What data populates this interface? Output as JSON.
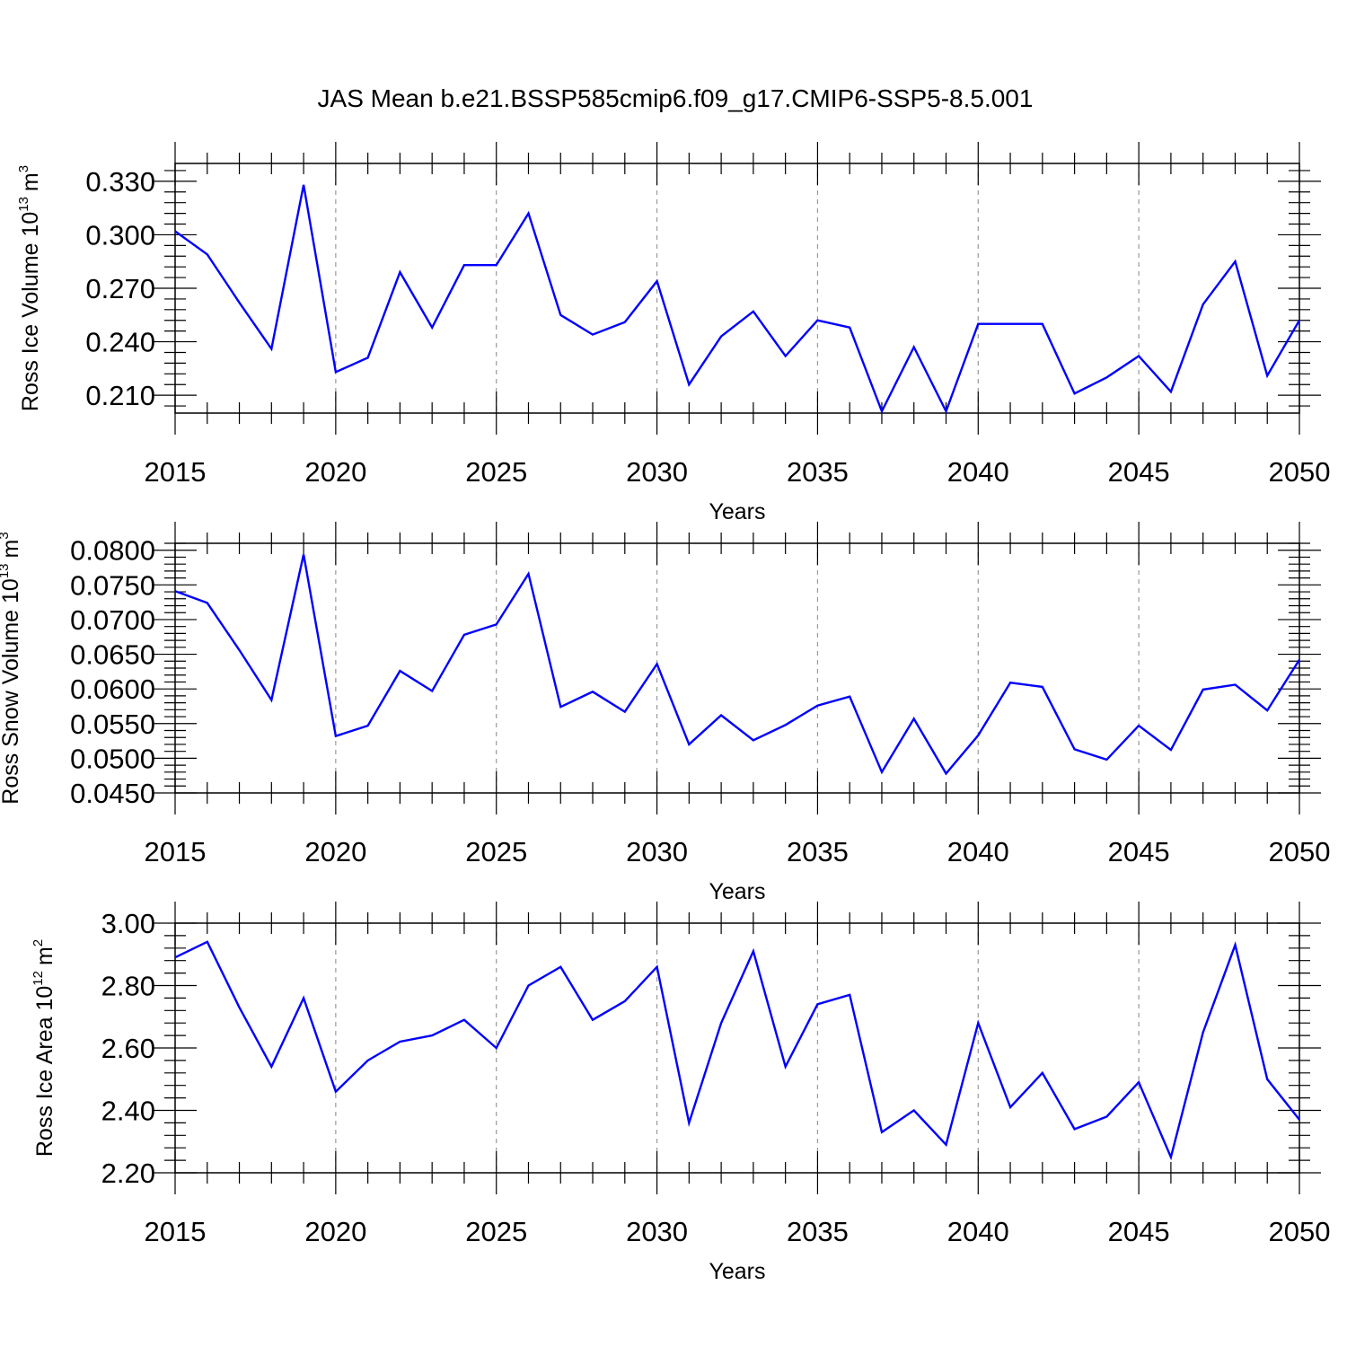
{
  "title": "JAS Mean b.e21.BSSP585cmip6.f09_g17.CMIP6-SSP5-8.5.001",
  "line_color": "#0000ff",
  "grid_color": "#999999",
  "chart_data": [
    {
      "type": "line",
      "ylabel": "Ross Ice Volume 10",
      "ylabel_exp": "13",
      "ylabel_unit": "m",
      "ylabel_unit_exp": "3",
      "xlabel": "Years",
      "xlim": [
        2015,
        2050
      ],
      "ylim": [
        0.2,
        0.34
      ],
      "x_ticks": [
        "2015",
        "2020",
        "2025",
        "2030",
        "2035",
        "2040",
        "2045",
        "2050"
      ],
      "y_ticks": [
        "0.210",
        "0.240",
        "0.270",
        "0.300",
        "0.330"
      ],
      "grid": "vertical dashed at major x ticks",
      "x": [
        2015,
        2016,
        2017,
        2018,
        2019,
        2020,
        2021,
        2022,
        2023,
        2024,
        2025,
        2026,
        2027,
        2028,
        2029,
        2030,
        2031,
        2032,
        2033,
        2034,
        2035,
        2036,
        2037,
        2038,
        2039,
        2040,
        2041,
        2042,
        2043,
        2044,
        2045,
        2046,
        2047,
        2048,
        2049,
        2050
      ],
      "values": [
        0.302,
        0.289,
        0.262,
        0.236,
        0.328,
        0.223,
        0.231,
        0.279,
        0.248,
        0.283,
        0.283,
        0.312,
        0.255,
        0.244,
        0.251,
        0.274,
        0.216,
        0.243,
        0.257,
        0.232,
        0.252,
        0.248,
        0.201,
        0.237,
        0.201,
        0.25,
        0.25,
        0.25,
        0.211,
        0.22,
        0.232,
        0.212,
        0.261,
        0.285,
        0.221,
        0.252
      ]
    },
    {
      "type": "line",
      "ylabel": "Ross Snow Volume 10",
      "ylabel_exp": "13",
      "ylabel_unit": "m",
      "ylabel_unit_exp": "3",
      "xlabel": "Years",
      "xlim": [
        2015,
        2050
      ],
      "ylim": [
        0.045,
        0.081
      ],
      "x_ticks": [
        "2015",
        "2020",
        "2025",
        "2030",
        "2035",
        "2040",
        "2045",
        "2050"
      ],
      "y_ticks": [
        "0.0450",
        "0.0500",
        "0.0550",
        "0.0600",
        "0.0650",
        "0.0700",
        "0.0750",
        "0.0800"
      ],
      "grid": "vertical dashed at major x ticks",
      "x": [
        2015,
        2016,
        2017,
        2018,
        2019,
        2020,
        2021,
        2022,
        2023,
        2024,
        2025,
        2026,
        2027,
        2028,
        2029,
        2030,
        2031,
        2032,
        2033,
        2034,
        2035,
        2036,
        2037,
        2038,
        2039,
        2040,
        2041,
        2042,
        2043,
        2044,
        2045,
        2046,
        2047,
        2048,
        2049,
        2050
      ],
      "values": [
        0.0741,
        0.0724,
        0.0656,
        0.0584,
        0.0794,
        0.0532,
        0.0547,
        0.0626,
        0.0597,
        0.0678,
        0.0693,
        0.0766,
        0.0574,
        0.0596,
        0.0567,
        0.0636,
        0.052,
        0.0562,
        0.0526,
        0.0548,
        0.0576,
        0.0589,
        0.048,
        0.0557,
        0.0478,
        0.0533,
        0.0609,
        0.0603,
        0.0513,
        0.0498,
        0.0547,
        0.0512,
        0.0599,
        0.0606,
        0.0569,
        0.0642
      ]
    },
    {
      "type": "line",
      "ylabel": "Ross Ice Area 10",
      "ylabel_exp": "12",
      "ylabel_unit": "m",
      "ylabel_unit_exp": "2",
      "xlabel": "Years",
      "xlim": [
        2015,
        2050
      ],
      "ylim": [
        2.2,
        3.0
      ],
      "x_ticks": [
        "2015",
        "2020",
        "2025",
        "2030",
        "2035",
        "2040",
        "2045",
        "2050"
      ],
      "y_ticks": [
        "2.20",
        "2.40",
        "2.60",
        "2.80",
        "3.00"
      ],
      "grid": "vertical dashed at major x ticks",
      "x": [
        2015,
        2016,
        2017,
        2018,
        2019,
        2020,
        2021,
        2022,
        2023,
        2024,
        2025,
        2026,
        2027,
        2028,
        2029,
        2030,
        2031,
        2032,
        2033,
        2034,
        2035,
        2036,
        2037,
        2038,
        2039,
        2040,
        2041,
        2042,
        2043,
        2044,
        2045,
        2046,
        2047,
        2048,
        2049,
        2050
      ],
      "values": [
        2.89,
        2.94,
        2.73,
        2.54,
        2.76,
        2.46,
        2.56,
        2.62,
        2.64,
        2.69,
        2.6,
        2.8,
        2.86,
        2.69,
        2.75,
        2.86,
        2.36,
        2.68,
        2.91,
        2.54,
        2.74,
        2.77,
        2.33,
        2.4,
        2.29,
        2.68,
        2.41,
        2.52,
        2.34,
        2.38,
        2.49,
        2.25,
        2.65,
        2.93,
        2.5,
        2.37
      ]
    }
  ]
}
